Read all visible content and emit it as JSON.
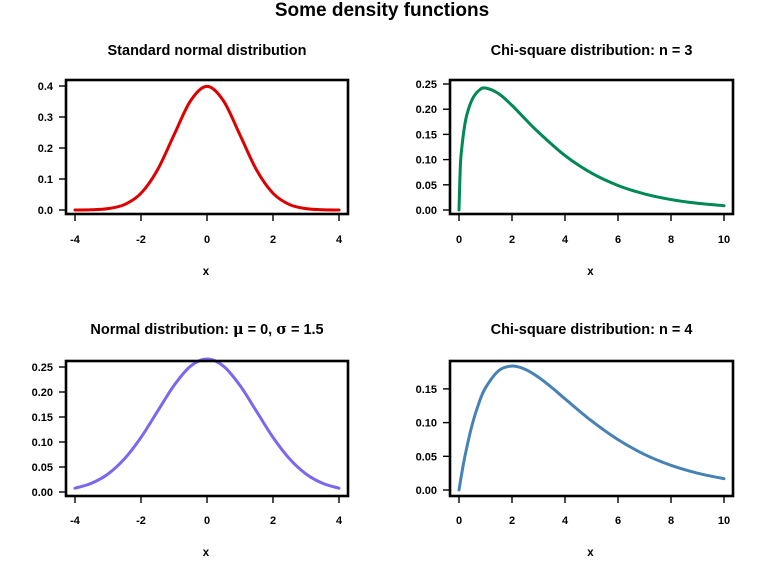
{
  "title": "Some density functions",
  "chart_data": [
    {
      "type": "line",
      "title": "Standard normal distribution",
      "xlabel": "x",
      "ylabel": "",
      "xlim": [
        -4,
        4
      ],
      "ylim": [
        0,
        0.4
      ],
      "xticks": [
        -4,
        -2,
        0,
        2,
        4
      ],
      "xtick_labels": [
        "-4",
        "-2",
        "0",
        "2",
        "4"
      ],
      "yticks": [
        0,
        0.1,
        0.2,
        0.3,
        0.4
      ],
      "ytick_labels": [
        "0.0",
        "0.1",
        "0.2",
        "0.3",
        "0.4"
      ],
      "color": "#dd0000",
      "grid": false,
      "series": [
        {
          "x": [
            -4,
            -3.5,
            -3,
            -2.5,
            -2,
            -1.5,
            -1,
            -0.5,
            0,
            0.5,
            1,
            1.5,
            2,
            2.5,
            3,
            3.5,
            4
          ],
          "y": [
            0.0001,
            0.0009,
            0.0044,
            0.0175,
            0.054,
            0.1295,
            0.242,
            0.3521,
            0.3989,
            0.3521,
            0.242,
            0.1295,
            0.054,
            0.0175,
            0.0044,
            0.0009,
            0.0001
          ]
        }
      ]
    },
    {
      "type": "line",
      "title": "Chi-square distribution: n = 3",
      "xlabel": "x",
      "ylabel": "",
      "xlim": [
        0,
        10
      ],
      "ylim": [
        0,
        0.25
      ],
      "xticks": [
        0,
        2,
        4,
        6,
        8,
        10
      ],
      "xtick_labels": [
        "0",
        "2",
        "4",
        "6",
        "8",
        "10"
      ],
      "yticks": [
        0,
        0.05,
        0.1,
        0.15,
        0.2,
        0.25
      ],
      "ytick_labels": [
        "0.00",
        "0.05",
        "0.10",
        "0.15",
        "0.20",
        "0.25"
      ],
      "color": "#008855",
      "grid": false,
      "series": [
        {
          "x": [
            0,
            0.05,
            0.1,
            0.2,
            0.3,
            0.5,
            0.75,
            1,
            1.5,
            2,
            2.5,
            3,
            4,
            5,
            6,
            7,
            8,
            9,
            10
          ],
          "y": [
            0,
            0.0868,
            0.1203,
            0.1629,
            0.1899,
            0.2197,
            0.2371,
            0.242,
            0.2307,
            0.2076,
            0.1804,
            0.1542,
            0.108,
            0.0733,
            0.0487,
            0.0319,
            0.0207,
            0.0133,
            0.0085
          ]
        }
      ]
    },
    {
      "type": "line",
      "title": "Normal distribution: μ = 0, σ = 1.5",
      "title_parts": [
        "Normal distribution: ",
        "μ",
        " = 0, ",
        "σ",
        " = 1.5"
      ],
      "xlabel": "x",
      "ylabel": "",
      "xlim": [
        -4,
        4
      ],
      "ylim": [
        0,
        0.25
      ],
      "xticks": [
        -4,
        -2,
        0,
        2,
        4
      ],
      "xtick_labels": [
        "-4",
        "-2",
        "0",
        "2",
        "4"
      ],
      "yticks": [
        0,
        0.05,
        0.1,
        0.15,
        0.2,
        0.25
      ],
      "ytick_labels": [
        "0.00",
        "0.05",
        "0.10",
        "0.15",
        "0.20",
        "0.25"
      ],
      "color": "#7b68ee",
      "grid": false,
      "series": [
        {
          "x": [
            -4,
            -3.5,
            -3,
            -2.5,
            -2,
            -1.5,
            -1,
            -0.5,
            0,
            0.5,
            1,
            1.5,
            2,
            2.5,
            3,
            3.5,
            4
          ],
          "y": [
            0.0076,
            0.0175,
            0.036,
            0.0664,
            0.1093,
            0.1613,
            0.213,
            0.2516,
            0.266,
            0.2516,
            0.213,
            0.1613,
            0.1093,
            0.0664,
            0.036,
            0.0175,
            0.0076
          ]
        }
      ]
    },
    {
      "type": "line",
      "title": "Chi-square distribution: n = 4",
      "xlabel": "x",
      "ylabel": "",
      "xlim": [
        0,
        10
      ],
      "ylim": [
        0,
        0.184
      ],
      "xticks": [
        0,
        2,
        4,
        6,
        8,
        10
      ],
      "xtick_labels": [
        "0",
        "2",
        "4",
        "6",
        "8",
        "10"
      ],
      "yticks": [
        0,
        0.05,
        0.1,
        0.15
      ],
      "ytick_labels": [
        "0.00",
        "0.05",
        "0.10",
        "0.15"
      ],
      "color": "#4682b4",
      "grid": false,
      "series": [
        {
          "x": [
            0,
            0.1,
            0.25,
            0.5,
            0.75,
            1,
            1.5,
            2,
            2.5,
            3,
            3.5,
            4,
            5,
            6,
            7,
            8,
            9,
            10
          ],
          "y": [
            0,
            0.0238,
            0.0551,
            0.0974,
            0.1289,
            0.1516,
            0.1771,
            0.1839,
            0.179,
            0.1673,
            0.1521,
            0.1353,
            0.1026,
            0.0747,
            0.0528,
            0.0366,
            0.025,
            0.0168
          ]
        }
      ]
    }
  ]
}
